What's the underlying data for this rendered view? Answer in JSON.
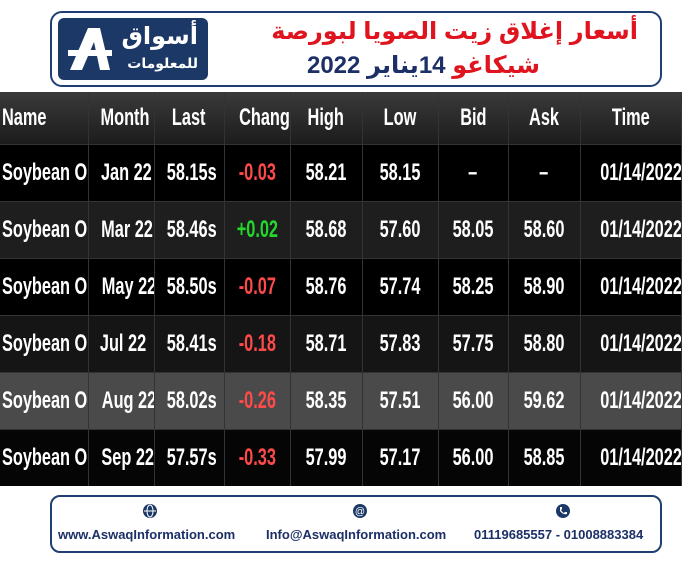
{
  "logo": {
    "name": "أسواق",
    "subtitle": "للمعلومات"
  },
  "header": {
    "title": "أسعار إغلاق زيت الصويا لبورصة",
    "subtitle_city": "شيكاغو",
    "subtitle_date": "14يناير 2022"
  },
  "table": {
    "columns": [
      "Name",
      "Month",
      "Last",
      "Change",
      "High",
      "Low",
      "Bid",
      "Ask",
      "Time"
    ],
    "rows": [
      [
        "Soybean Oil",
        "Jan 22",
        "58.15s",
        "-0.03",
        "58.21",
        "58.15",
        "–",
        "–",
        "01/14/2022"
      ],
      [
        "Soybean Oil",
        "Mar 22",
        "58.46s",
        "+0.02",
        "58.68",
        "57.60",
        "58.05",
        "58.60",
        "01/14/2022"
      ],
      [
        "Soybean Oil",
        "May 22",
        "58.50s",
        "-0.07",
        "58.76",
        "57.74",
        "58.25",
        "58.90",
        "01/14/2022"
      ],
      [
        "Soybean Oil",
        "Jul 22",
        "58.41s",
        "-0.18",
        "58.71",
        "57.83",
        "57.75",
        "58.80",
        "01/14/2022"
      ],
      [
        "Soybean Oil",
        "Aug 22",
        "58.02s",
        "-0.26",
        "58.35",
        "57.51",
        "56.00",
        "59.62",
        "01/14/2022"
      ],
      [
        "Soybean Oil",
        "Sep 22",
        "57.57s",
        "-0.33",
        "57.99",
        "57.17",
        "56.00",
        "58.85",
        "01/14/2022"
      ]
    ]
  },
  "footer": {
    "website": "www.AswaqInformation.com",
    "email": "Info@AswaqInformation.com",
    "phones": "01119685557 - 01008883384"
  }
}
